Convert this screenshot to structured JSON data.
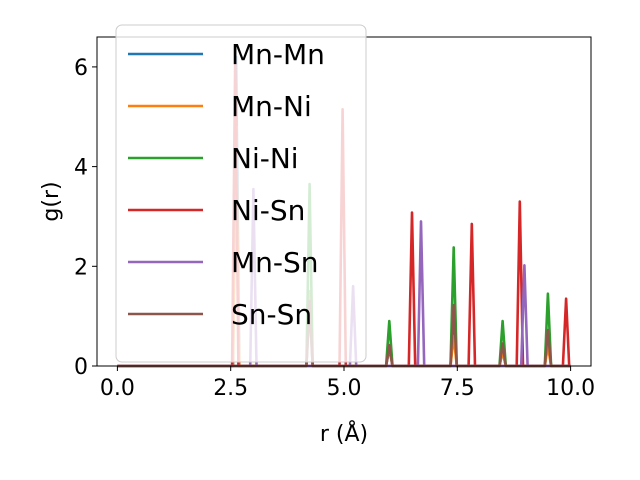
{
  "chart_data": {
    "type": "line",
    "xlabel": "r (Å)",
    "ylabel": "g(r)",
    "xlim": [
      -0.45,
      10.45
    ],
    "ylim": [
      0,
      6.6
    ],
    "xticks": [
      0.0,
      2.5,
      5.0,
      7.5,
      10.0
    ],
    "xtick_labels": [
      "0.0",
      "2.5",
      "5.0",
      "7.5",
      "10.0"
    ],
    "yticks": [
      0,
      2,
      4,
      6
    ],
    "ytick_labels": [
      "0",
      "2",
      "4",
      "6"
    ],
    "grid": false,
    "legend_position": "top-left",
    "series": [
      {
        "name": "Mn-Mn",
        "color": "#1f77b4",
        "peaks": [
          [
            2.62,
            6.2
          ],
          [
            4.24,
            1.2
          ],
          [
            6.0,
            0.35
          ],
          [
            7.42,
            0.8
          ],
          [
            8.5,
            0.3
          ],
          [
            9.5,
            0.5
          ]
        ]
      },
      {
        "name": "Mn-Ni",
        "color": "#ff7f0e",
        "peaks": [
          [
            2.62,
            4.8
          ],
          [
            4.24,
            1.5
          ],
          [
            6.0,
            0.4
          ],
          [
            7.42,
            0.6
          ],
          [
            8.5,
            0.3
          ],
          [
            9.5,
            0.4
          ]
        ]
      },
      {
        "name": "Ni-Ni",
        "color": "#2ca02c",
        "peaks": [
          [
            4.24,
            3.65
          ],
          [
            6.0,
            0.9
          ],
          [
            7.42,
            2.38
          ],
          [
            8.5,
            0.9
          ],
          [
            9.5,
            1.45
          ]
        ]
      },
      {
        "name": "Ni-Sn",
        "color": "#d62728",
        "peaks": [
          [
            2.6,
            6.15
          ],
          [
            4.97,
            5.15
          ],
          [
            6.5,
            3.08
          ],
          [
            7.82,
            2.85
          ],
          [
            8.88,
            3.3
          ],
          [
            9.9,
            1.35
          ]
        ]
      },
      {
        "name": "Mn-Sn",
        "color": "#9467bd",
        "peaks": [
          [
            3.0,
            3.55
          ],
          [
            5.2,
            1.6
          ],
          [
            6.7,
            2.9
          ],
          [
            8.98,
            2.02
          ]
        ]
      },
      {
        "name": "Sn-Sn",
        "color": "#8c564b",
        "peaks": [
          [
            4.24,
            1.3
          ],
          [
            6.0,
            0.42
          ],
          [
            7.42,
            1.22
          ],
          [
            8.5,
            0.45
          ],
          [
            9.5,
            0.72
          ]
        ]
      }
    ]
  }
}
